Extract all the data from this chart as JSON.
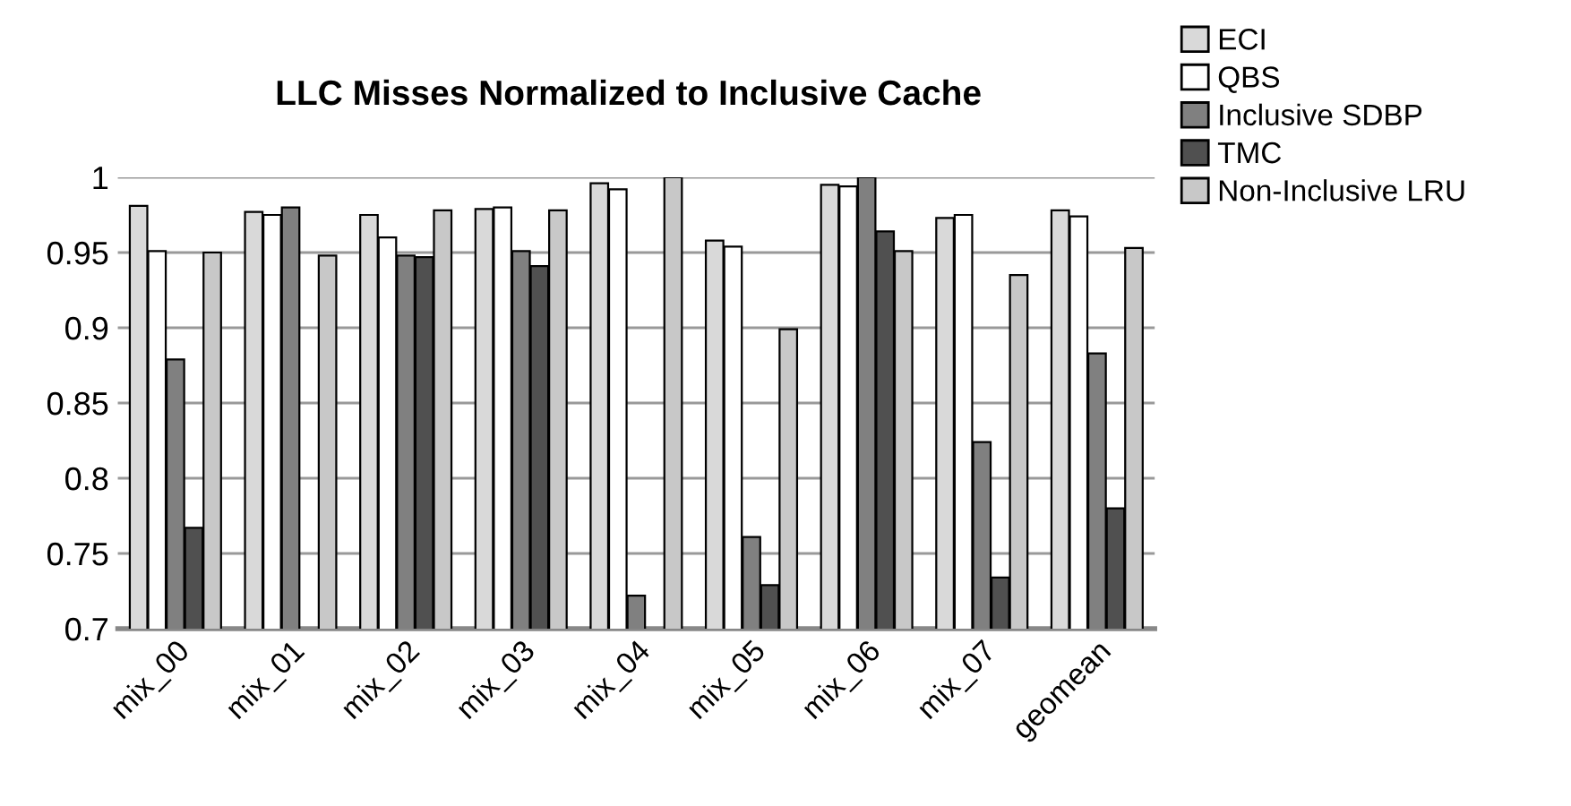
{
  "chart_data": {
    "type": "bar",
    "title": "LLC Misses Normalized to Inclusive Cache",
    "categories": [
      "mix_00",
      "mix_01",
      "mix_02",
      "mix_03",
      "mix_04",
      "mix_05",
      "mix_06",
      "mix_07",
      "geomean"
    ],
    "series": [
      {
        "name": "ECI",
        "color": "#d9d9d9",
        "values": [
          0.981,
          0.977,
          0.975,
          0.979,
          0.996,
          0.958,
          0.995,
          0.973,
          0.978
        ]
      },
      {
        "name": "QBS",
        "color": "#ffffff",
        "values": [
          0.951,
          0.975,
          0.96,
          0.98,
          0.992,
          0.954,
          0.994,
          0.975,
          0.974
        ]
      },
      {
        "name": "Inclusive SDBP",
        "color": "#808080",
        "values": [
          0.879,
          0.98,
          0.948,
          0.951,
          0.722,
          0.761,
          1.0,
          0.824,
          0.883
        ]
      },
      {
        "name": "TMC",
        "color": "#505050",
        "values": [
          0.767,
          null,
          0.947,
          0.941,
          null,
          0.729,
          0.964,
          0.734,
          0.78
        ]
      },
      {
        "name": "Non-Inclusive LRU",
        "color": "#c8c8c8",
        "values": [
          0.95,
          0.948,
          0.978,
          0.978,
          1.0,
          0.899,
          0.951,
          0.935,
          0.953
        ]
      }
    ],
    "ylim": [
      0.7,
      1.0
    ],
    "yticks": [
      0.7,
      0.75,
      0.8,
      0.85,
      0.9,
      0.95,
      1
    ],
    "grid": "y",
    "legend": "top right"
  }
}
